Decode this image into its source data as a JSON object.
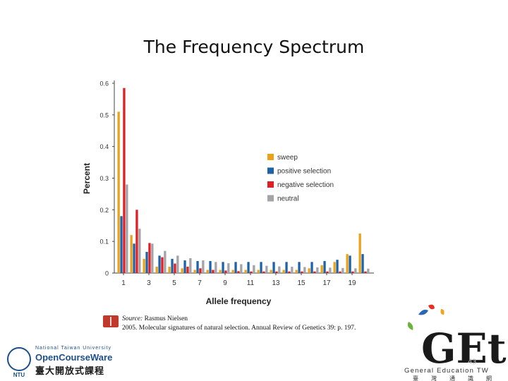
{
  "slide": {
    "title": "The Frequency Spectrum",
    "page_number": "43",
    "source_lead": "Source:",
    "source_author": "Rasmus Nielsen",
    "source_citation": "2005. Molecular signatures of natural selection. Annual Review of Genetics 39: p. 197."
  },
  "logos": {
    "ntu_line1": "National Taiwan University",
    "ntu_line2": "OpenCourseWare",
    "ntu_line3": "臺大開放式課程",
    "ntu_seal": "NTU",
    "get_text": "GEt",
    "get_subtitle": "General Education TW",
    "get_cjk": "臺灣通識網"
  },
  "colors": {
    "sweep": "#e8a21c",
    "positive": "#1f63a6",
    "negative": "#dd1f26",
    "neutral": "#a3a3a8"
  },
  "chart_data": {
    "type": "bar",
    "xlabel": "Allele frequency",
    "ylabel": "Percent",
    "ylim": [
      0,
      0.6
    ],
    "yticks": [
      "0",
      "0.1",
      "0.2",
      "0.3",
      "0.4",
      "0.5",
      "0.6"
    ],
    "x_tick_labels": [
      "1",
      "3",
      "5",
      "7",
      "9",
      "11",
      "13",
      "15",
      "17",
      "19"
    ],
    "categories": [
      1,
      2,
      3,
      4,
      5,
      6,
      7,
      8,
      9,
      10,
      11,
      12,
      13,
      14,
      15,
      16,
      17,
      18,
      19,
      20
    ],
    "legend_position": "right",
    "series": [
      {
        "name": "sweep",
        "values": [
          0.51,
          0.12,
          0.045,
          0.02,
          0.02,
          0.015,
          0.01,
          0.01,
          0.01,
          0.01,
          0.01,
          0.01,
          0.01,
          0.01,
          0.01,
          0.015,
          0.025,
          0.035,
          0.06,
          0.125
        ]
      },
      {
        "name": "positive selection",
        "values": [
          0.18,
          0.093,
          0.067,
          0.055,
          0.045,
          0.04,
          0.038,
          0.038,
          0.035,
          0.035,
          0.035,
          0.035,
          0.035,
          0.035,
          0.035,
          0.035,
          0.038,
          0.042,
          0.055,
          0.06
        ]
      },
      {
        "name": "negative selection",
        "values": [
          0.585,
          0.2,
          0.095,
          0.05,
          0.03,
          0.02,
          0.015,
          0.01,
          0.008,
          0.006,
          0.005,
          0.005,
          0.005,
          0.005,
          0.005,
          0.005,
          0.005,
          0.005,
          0.005,
          0.005
        ]
      },
      {
        "name": "neutral",
        "values": [
          0.28,
          0.14,
          0.093,
          0.07,
          0.055,
          0.047,
          0.04,
          0.035,
          0.031,
          0.028,
          0.025,
          0.023,
          0.021,
          0.02,
          0.019,
          0.018,
          0.017,
          0.016,
          0.015,
          0.014
        ]
      }
    ]
  }
}
